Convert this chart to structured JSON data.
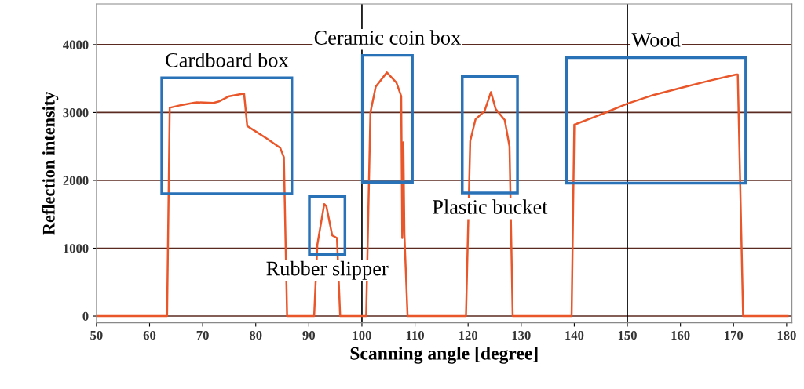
{
  "chart_data": {
    "type": "line",
    "xlabel": "Scanning angle [degree]",
    "ylabel": "Reflection intensity",
    "x": [
      50,
      63.3,
      63.8,
      66,
      68.8,
      72,
      73,
      75,
      77.8,
      78.4,
      80,
      82,
      84.6,
      85.3,
      85.9,
      91.0,
      91.6,
      92.9,
      93.3,
      94.4,
      95.3,
      95.9,
      100.8,
      101.6,
      102.6,
      104.7,
      106.5,
      107.4,
      107.6,
      107.8,
      108.0,
      108.6,
      119.6,
      120.4,
      121.4,
      123.1,
      124.3,
      125.2,
      126.9,
      127.8,
      128.4,
      139.5,
      140.0,
      145,
      150,
      155,
      160,
      165,
      170.5,
      170.8,
      171.8,
      180.2
    ],
    "series": [
      {
        "color": "#e8562a",
        "values": [
          0,
          0,
          3070,
          3110,
          3150,
          3140,
          3160,
          3240,
          3280,
          2800,
          2720,
          2620,
          2480,
          2340,
          0,
          0,
          1050,
          1650,
          1620,
          1190,
          1150,
          0,
          0,
          3000,
          3380,
          3590,
          3440,
          3240,
          1150,
          2560,
          1200,
          0,
          0,
          2580,
          2900,
          3020,
          3300,
          3050,
          2890,
          2500,
          0,
          0,
          2820,
          2970,
          3130,
          3260,
          3360,
          3460,
          3560,
          3560,
          0,
          0
        ]
      }
    ],
    "xlim": [
      50,
      181
    ],
    "ylim": [
      -100,
      4600
    ],
    "xticks": [
      50,
      60,
      70,
      80,
      90,
      100,
      110,
      120,
      130,
      140,
      150,
      160,
      170,
      180
    ],
    "yticks": [
      0,
      1000,
      2000,
      3000,
      4000
    ],
    "grid": "y",
    "legend": false,
    "marker": "none",
    "line_style": "solid",
    "ref_lines": [
      {
        "axis": "x",
        "value": 100,
        "label": null,
        "color": "#000000"
      },
      {
        "axis": "x",
        "value": 150,
        "label": null,
        "color": "#000000"
      }
    ],
    "annotations": [
      "Cardboard box",
      "Rubber slipper",
      "Ceramic coin box",
      "Plastic bucket",
      "Wood"
    ]
  }
}
